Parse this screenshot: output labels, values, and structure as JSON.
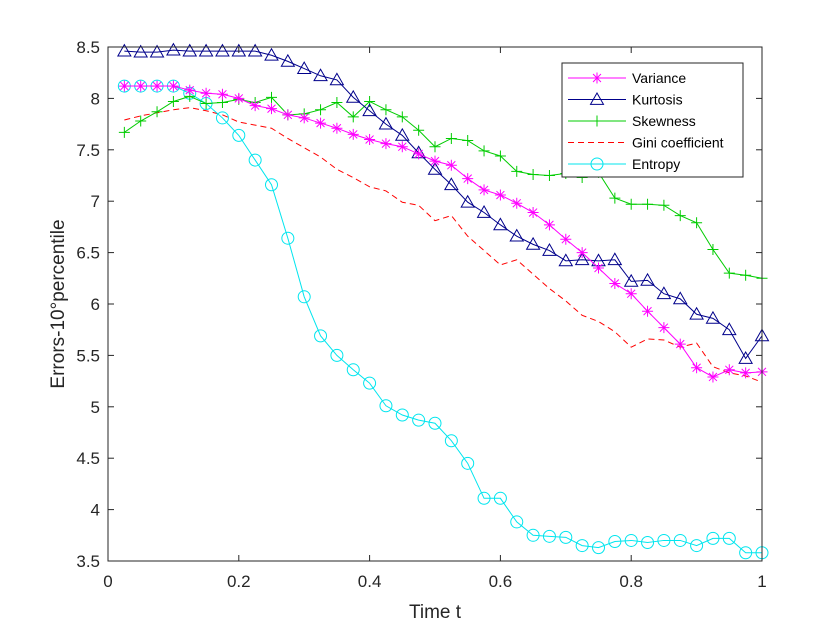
{
  "chart_data": {
    "type": "line",
    "title": "",
    "xlabel": "Time t",
    "ylabel": "Errors-10°percentile",
    "xlim": [
      0,
      1
    ],
    "ylim": [
      3.5,
      8.5
    ],
    "xticks": [
      "0",
      "0.2",
      "0.4",
      "0.6",
      "0.8",
      "1"
    ],
    "yticks": [
      "3.5",
      "4",
      "4.5",
      "5",
      "5.5",
      "6",
      "6.5",
      "7",
      "7.5",
      "8",
      "8.5"
    ],
    "grid": false,
    "legend_position": "top-right",
    "x": [
      0.025,
      0.05,
      0.075,
      0.1,
      0.125,
      0.15,
      0.175,
      0.2,
      0.225,
      0.25,
      0.275,
      0.3,
      0.325,
      0.35,
      0.375,
      0.4,
      0.425,
      0.45,
      0.475,
      0.5,
      0.525,
      0.55,
      0.575,
      0.6,
      0.625,
      0.65,
      0.675,
      0.7,
      0.725,
      0.75,
      0.775,
      0.8,
      0.825,
      0.85,
      0.875,
      0.9,
      0.925,
      0.95,
      0.975,
      1.0
    ],
    "series": [
      {
        "name": "Variance",
        "color": "#ff00ff",
        "linestyle": "solid",
        "marker": "asterisk",
        "values": [
          8.12,
          8.12,
          8.12,
          8.12,
          8.08,
          8.05,
          8.04,
          8.0,
          7.93,
          7.9,
          7.84,
          7.81,
          7.76,
          7.71,
          7.65,
          7.6,
          7.56,
          7.53,
          7.46,
          7.39,
          7.35,
          7.22,
          7.11,
          7.06,
          6.98,
          6.89,
          6.77,
          6.63,
          6.5,
          6.35,
          6.2,
          6.1,
          5.93,
          5.77,
          5.61,
          5.38,
          5.29,
          5.36,
          5.33,
          5.34
        ]
      },
      {
        "name": "Kurtosis",
        "color": "#00008b",
        "linestyle": "solid",
        "marker": "triangle",
        "values": [
          8.46,
          8.45,
          8.45,
          8.47,
          8.46,
          8.46,
          8.46,
          8.46,
          8.46,
          8.42,
          8.36,
          8.29,
          8.22,
          8.18,
          8.01,
          7.88,
          7.75,
          7.64,
          7.47,
          7.31,
          7.16,
          6.99,
          6.89,
          6.77,
          6.66,
          6.58,
          6.52,
          6.42,
          6.43,
          6.42,
          6.43,
          6.22,
          6.23,
          6.1,
          6.05,
          5.9,
          5.86,
          5.75,
          5.47,
          5.69
        ]
      },
      {
        "name": "Skewness",
        "color": "#00cc00",
        "linestyle": "solid",
        "marker": "plus",
        "values": [
          7.67,
          7.78,
          7.87,
          7.97,
          8.02,
          7.95,
          7.96,
          7.99,
          7.96,
          8.01,
          7.84,
          7.85,
          7.89,
          7.96,
          7.82,
          7.97,
          7.89,
          7.82,
          7.69,
          7.53,
          7.61,
          7.59,
          7.49,
          7.44,
          7.29,
          7.26,
          7.25,
          7.27,
          7.23,
          7.28,
          7.03,
          6.97,
          6.97,
          6.96,
          6.86,
          6.79,
          6.53,
          6.3,
          6.28,
          6.25
        ]
      },
      {
        "name": "Gini coefficient",
        "color": "#ff0000",
        "linestyle": "dashed",
        "marker": "none",
        "values": [
          7.79,
          7.83,
          7.86,
          7.89,
          7.91,
          7.88,
          7.84,
          7.77,
          7.74,
          7.71,
          7.61,
          7.52,
          7.43,
          7.31,
          7.23,
          7.14,
          7.1,
          6.99,
          6.96,
          6.81,
          6.86,
          6.66,
          6.52,
          6.38,
          6.43,
          6.29,
          6.15,
          6.03,
          5.89,
          5.83,
          5.73,
          5.58,
          5.66,
          5.65,
          5.58,
          5.62,
          5.39,
          5.33,
          5.3,
          5.24
        ]
      },
      {
        "name": "Entropy",
        "color": "#00e5ee",
        "linestyle": "solid",
        "marker": "circle",
        "values": [
          8.12,
          8.12,
          8.12,
          8.12,
          8.05,
          7.95,
          7.81,
          7.64,
          7.4,
          7.16,
          6.64,
          6.07,
          5.69,
          5.5,
          5.36,
          5.23,
          5.01,
          4.92,
          4.87,
          4.84,
          4.67,
          4.45,
          4.11,
          4.11,
          3.88,
          3.75,
          3.74,
          3.73,
          3.65,
          3.63,
          3.69,
          3.7,
          3.68,
          3.7,
          3.7,
          3.65,
          3.72,
          3.72,
          3.58,
          3.58
        ]
      }
    ]
  }
}
